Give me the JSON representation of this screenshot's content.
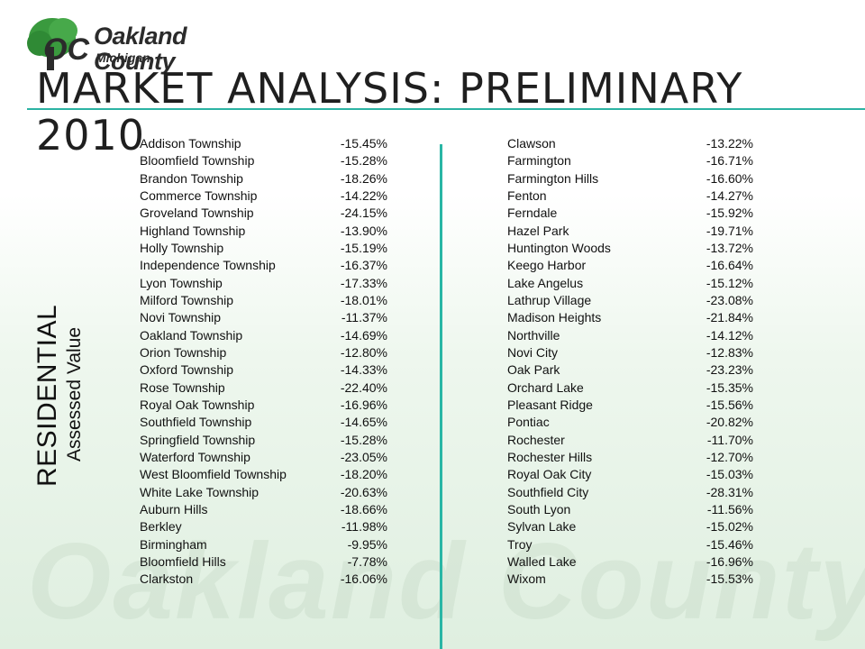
{
  "logo": {
    "brand": "Oakland County",
    "sub": "Michigan"
  },
  "title": "MARKET ANALYSIS: PRELIMINARY 2010",
  "side_label": {
    "main": "RESIDENTIAL",
    "sub": "Assessed Value"
  },
  "watermark": "Oakland County",
  "colors": {
    "accent": "#29b6a5",
    "logo_green": "#3a9a3e"
  },
  "left_rows": [
    {
      "name": "Addison Township",
      "pct": "-15.45%"
    },
    {
      "name": "Bloomfield Township",
      "pct": "-15.28%"
    },
    {
      "name": "Brandon Township",
      "pct": "-18.26%"
    },
    {
      "name": "Commerce Township",
      "pct": "-14.22%"
    },
    {
      "name": "Groveland Township",
      "pct": "-24.15%"
    },
    {
      "name": "Highland Township",
      "pct": "-13.90%"
    },
    {
      "name": "Holly Township",
      "pct": "-15.19%"
    },
    {
      "name": "Independence Township",
      "pct": "-16.37%"
    },
    {
      "name": "Lyon Township",
      "pct": "-17.33%"
    },
    {
      "name": "Milford Township",
      "pct": "-18.01%"
    },
    {
      "name": "Novi Township",
      "pct": "-11.37%"
    },
    {
      "name": "Oakland Township",
      "pct": "-14.69%"
    },
    {
      "name": "Orion Township",
      "pct": "-12.80%"
    },
    {
      "name": "Oxford Township",
      "pct": "-14.33%"
    },
    {
      "name": "Rose Township",
      "pct": "-22.40%"
    },
    {
      "name": "Royal Oak Township",
      "pct": "-16.96%"
    },
    {
      "name": "Southfield Township",
      "pct": "-14.65%"
    },
    {
      "name": "Springfield Township",
      "pct": "-15.28%"
    },
    {
      "name": "Waterford Township",
      "pct": "-23.05%"
    },
    {
      "name": "West Bloomfield Township",
      "pct": "-18.20%"
    },
    {
      "name": "White Lake Township",
      "pct": "-20.63%"
    },
    {
      "name": "Auburn Hills",
      "pct": "-18.66%"
    },
    {
      "name": "Berkley",
      "pct": "-11.98%"
    },
    {
      "name": "Birmingham",
      "pct": "-9.95%"
    },
    {
      "name": "Bloomfield Hills",
      "pct": "-7.78%"
    },
    {
      "name": "Clarkston",
      "pct": "-16.06%"
    }
  ],
  "right_rows": [
    {
      "name": "Clawson",
      "pct": "-13.22%"
    },
    {
      "name": "Farmington",
      "pct": "-16.71%"
    },
    {
      "name": "Farmington Hills",
      "pct": "-16.60%"
    },
    {
      "name": "Fenton",
      "pct": "-14.27%"
    },
    {
      "name": "Ferndale",
      "pct": "-15.92%"
    },
    {
      "name": "Hazel Park",
      "pct": "-19.71%"
    },
    {
      "name": "Huntington Woods",
      "pct": "-13.72%"
    },
    {
      "name": "Keego Harbor",
      "pct": "-16.64%"
    },
    {
      "name": "Lake Angelus",
      "pct": "-15.12%"
    },
    {
      "name": "Lathrup Village",
      "pct": "-23.08%"
    },
    {
      "name": "Madison Heights",
      "pct": "-21.84%"
    },
    {
      "name": "Northville",
      "pct": "-14.12%"
    },
    {
      "name": "Novi City",
      "pct": "-12.83%"
    },
    {
      "name": "Oak Park",
      "pct": "-23.23%"
    },
    {
      "name": "Orchard Lake",
      "pct": "-15.35%"
    },
    {
      "name": "Pleasant Ridge",
      "pct": "-15.56%"
    },
    {
      "name": "Pontiac",
      "pct": "-20.82%"
    },
    {
      "name": "Rochester",
      "pct": "-11.70%"
    },
    {
      "name": "Rochester Hills",
      "pct": "-12.70%"
    },
    {
      "name": "Royal Oak City",
      "pct": "-15.03%"
    },
    {
      "name": "Southfield City",
      "pct": "-28.31%"
    },
    {
      "name": "South Lyon",
      "pct": "-11.56%"
    },
    {
      "name": "Sylvan Lake",
      "pct": "-15.02%"
    },
    {
      "name": "Troy",
      "pct": "-15.46%"
    },
    {
      "name": "Walled Lake",
      "pct": "-16.96%"
    },
    {
      "name": "Wixom",
      "pct": "-15.53%"
    }
  ]
}
